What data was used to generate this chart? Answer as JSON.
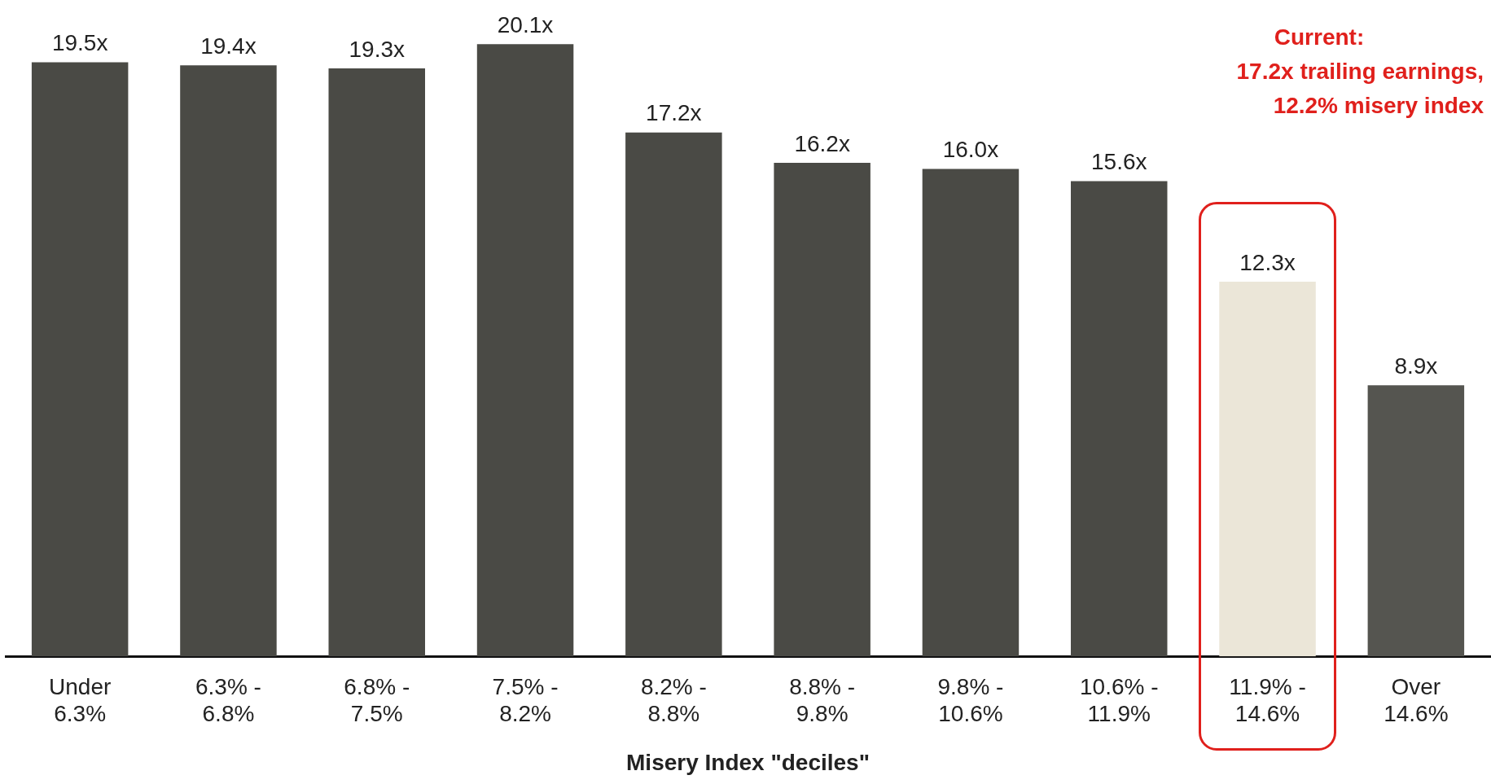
{
  "chart_data": {
    "type": "bar",
    "categories": [
      "Under\n6.3%",
      "6.3% -\n6.8%",
      "6.8% -\n7.5%",
      "7.5% -\n8.2%",
      "8.2% -\n8.8%",
      "8.8% -\n9.8%",
      "9.8% -\n10.6%",
      "10.6% -\n11.9%",
      "11.9% -\n14.6%",
      "Over\n14.6%"
    ],
    "values": [
      19.5,
      19.4,
      19.3,
      20.1,
      17.2,
      16.2,
      16.0,
      15.6,
      12.3,
      8.9
    ],
    "colors": [
      "#4a4a45",
      "#4a4a45",
      "#4a4a45",
      "#4a4a45",
      "#4a4a45",
      "#4a4a45",
      "#4a4a45",
      "#4a4a45",
      "#ebe6d8",
      "#555550"
    ],
    "value_labels": [
      "19.5x",
      "19.4x",
      "19.3x",
      "20.1x",
      "17.2x",
      "16.2x",
      "16.0x",
      "15.6x",
      "12.3x",
      "8.9x"
    ],
    "xlabel": "Misery Index \"deciles\"",
    "annotations": [
      "Current:\n17.2x trailing earnings,\n12.2% misery index"
    ],
    "tick_labels": "x",
    "grid": false,
    "legend": false
  }
}
